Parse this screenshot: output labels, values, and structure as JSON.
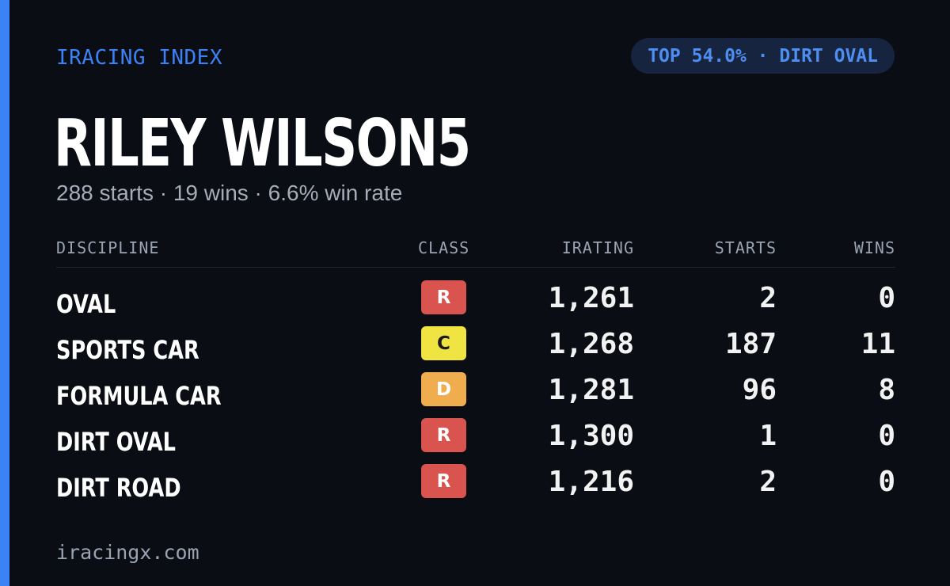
{
  "brand": "IRACING INDEX",
  "rank_pill": "TOP 54.0% · DIRT OVAL",
  "player": {
    "name": "RILEY WILSON5",
    "stats_line": "288 starts · 19 wins · 6.6% win rate"
  },
  "table": {
    "headers": {
      "discipline": "DISCIPLINE",
      "class": "CLASS",
      "irating": "IRATING",
      "starts": "STARTS",
      "wins": "WINS"
    },
    "rows": [
      {
        "discipline": "OVAL",
        "class": "R",
        "class_color": "#d9534f",
        "class_text_color": "#ffffff",
        "irating": "1,261",
        "starts": "2",
        "wins": "0"
      },
      {
        "discipline": "SPORTS CAR",
        "class": "C",
        "class_color": "#f0e442",
        "class_text_color": "#1a1a1a",
        "irating": "1,268",
        "starts": "187",
        "wins": "11"
      },
      {
        "discipline": "FORMULA CAR",
        "class": "D",
        "class_color": "#f0ad4e",
        "class_text_color": "#ffffff",
        "irating": "1,281",
        "starts": "96",
        "wins": "8"
      },
      {
        "discipline": "DIRT OVAL",
        "class": "R",
        "class_color": "#d9534f",
        "class_text_color": "#ffffff",
        "irating": "1,300",
        "starts": "1",
        "wins": "0"
      },
      {
        "discipline": "DIRT ROAD",
        "class": "R",
        "class_color": "#d9534f",
        "class_text_color": "#ffffff",
        "irating": "1,216",
        "starts": "2",
        "wins": "0"
      }
    ]
  },
  "footer": "iracingx.com",
  "colors": {
    "background": "#0a0d14",
    "accent": "#3b82f6",
    "pill_background": "#16243f"
  }
}
